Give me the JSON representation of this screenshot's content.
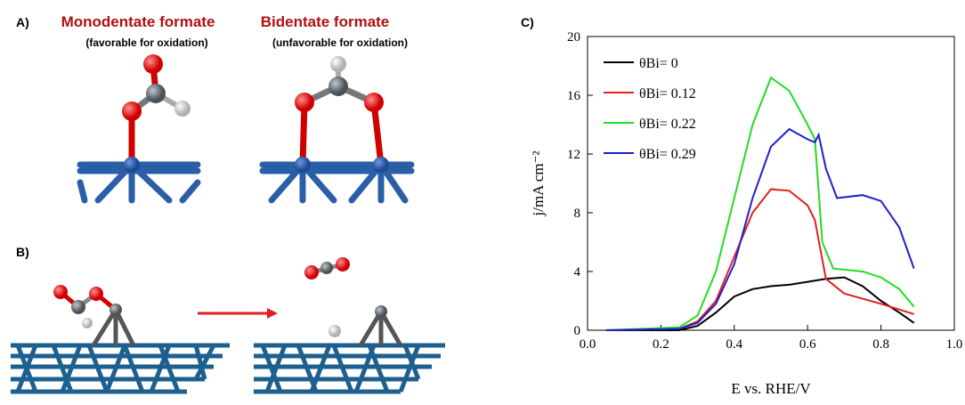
{
  "panels": {
    "a": {
      "label": "A)",
      "mono_title": "Monodentate formate",
      "mono_note": "(favorable for oxidation)",
      "bi_title": "Bidentate formate",
      "bi_note": "(unfavorable for oxidation)"
    },
    "b": {
      "label": "B)"
    },
    "c": {
      "label": "C)"
    }
  },
  "chart_data": {
    "type": "line",
    "xlabel": "E vs. RHE/V",
    "ylabel": "j/mA cm⁻²",
    "xlim": [
      0,
      1
    ],
    "ylim": [
      0,
      20
    ],
    "xticks": [
      {
        "value": 0,
        "label": "0.0"
      },
      0.2,
      0.4,
      0.6,
      0.8,
      {
        "value": 1,
        "label": "1.0"
      }
    ],
    "yticks": [
      0,
      4,
      8,
      12,
      16,
      20
    ],
    "legend": "upper left",
    "series": [
      {
        "name": "θBi= 0",
        "color": "#000000",
        "x": [
          0.05,
          0.25,
          0.3,
          0.35,
          0.4,
          0.45,
          0.5,
          0.55,
          0.6,
          0.65,
          0.7,
          0.75,
          0.8,
          0.85,
          0.89
        ],
        "values": [
          0,
          0,
          0.3,
          1.2,
          2.3,
          2.8,
          3.0,
          3.1,
          3.3,
          3.5,
          3.6,
          3.0,
          2.0,
          1.2,
          0.5
        ]
      },
      {
        "name": "θBi= 0.12",
        "color": "#e02020",
        "x": [
          0.05,
          0.25,
          0.3,
          0.35,
          0.4,
          0.45,
          0.5,
          0.55,
          0.6,
          0.62,
          0.65,
          0.7,
          0.8,
          0.89
        ],
        "values": [
          0,
          0.1,
          0.6,
          2.0,
          5.0,
          8.0,
          9.6,
          9.5,
          8.5,
          7.5,
          3.5,
          2.5,
          1.8,
          1.1
        ]
      },
      {
        "name": "θBi= 0.22",
        "color": "#22dd22",
        "x": [
          0.05,
          0.25,
          0.3,
          0.35,
          0.4,
          0.45,
          0.5,
          0.55,
          0.6,
          0.62,
          0.64,
          0.67,
          0.75,
          0.8,
          0.85,
          0.89
        ],
        "values": [
          0,
          0.2,
          1.0,
          4.0,
          9.0,
          14.0,
          17.2,
          16.3,
          14.0,
          13.0,
          6.0,
          4.2,
          4.0,
          3.6,
          2.8,
          1.6
        ]
      },
      {
        "name": "θBi= 0.29",
        "color": "#1f1fd0",
        "x": [
          0.05,
          0.25,
          0.3,
          0.35,
          0.4,
          0.45,
          0.5,
          0.55,
          0.6,
          0.62,
          0.63,
          0.65,
          0.68,
          0.75,
          0.8,
          0.85,
          0.89
        ],
        "values": [
          0,
          0.1,
          0.5,
          1.8,
          4.5,
          9.0,
          12.5,
          13.7,
          13.0,
          12.8,
          13.3,
          11.0,
          9.0,
          9.2,
          8.8,
          7.0,
          4.2
        ]
      }
    ]
  }
}
